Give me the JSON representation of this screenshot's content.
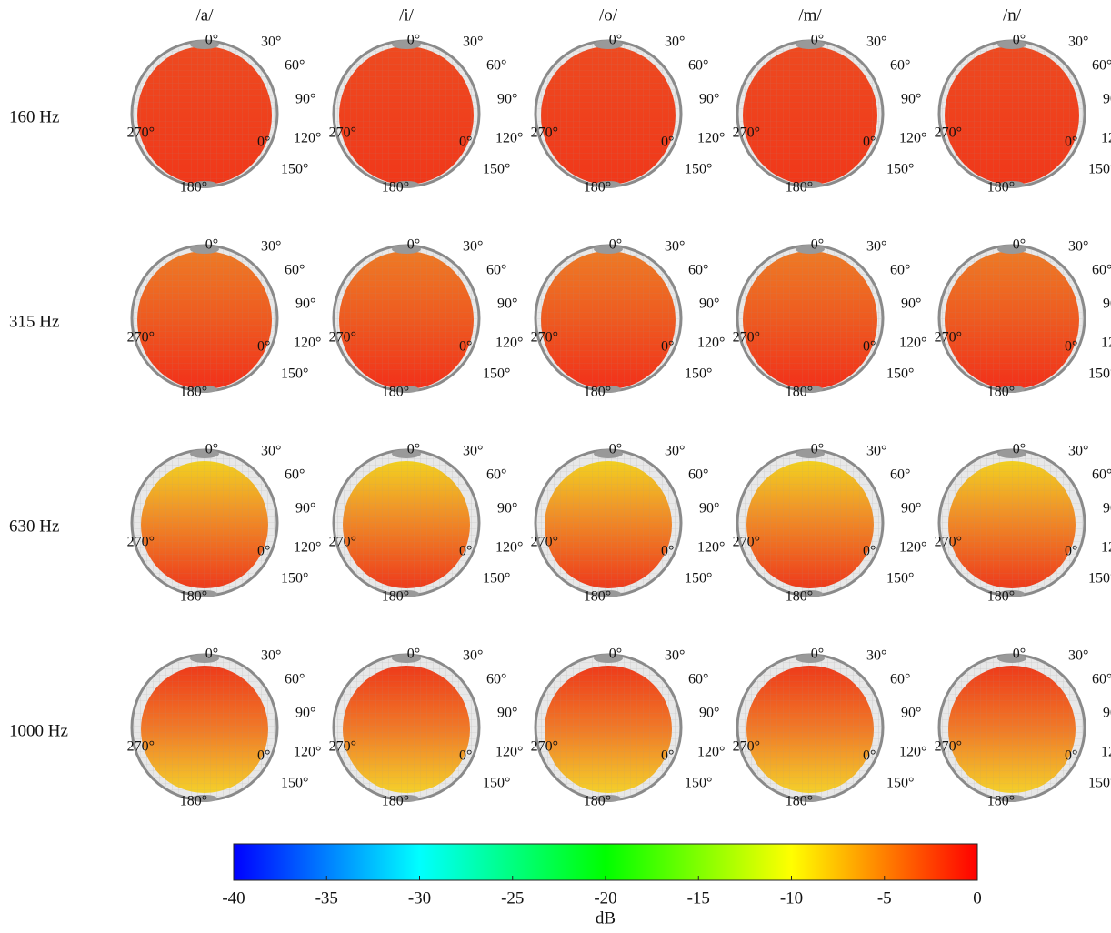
{
  "chart_data": {
    "type": "balloon-grid",
    "columns": [
      "/a/",
      "/i/",
      "/o/",
      "/m/",
      "/n/"
    ],
    "rows": [
      "160 Hz",
      "315 Hz",
      "630 Hz",
      "1000 Hz"
    ],
    "angle_labels": [
      "0°",
      "30°",
      "60°",
      "90°",
      "120°",
      "150°",
      "180°",
      "270°",
      "0°"
    ],
    "colorbar": {
      "label": "dB",
      "clim": [
        -40,
        0
      ],
      "ticks": [
        -40,
        -35,
        -30,
        -25,
        -20,
        -15,
        -10,
        -5,
        0
      ],
      "colormap": [
        "#0000ff",
        "#00ffff",
        "#00ff00",
        "#ffff00",
        "#ff0000"
      ]
    }
  }
}
